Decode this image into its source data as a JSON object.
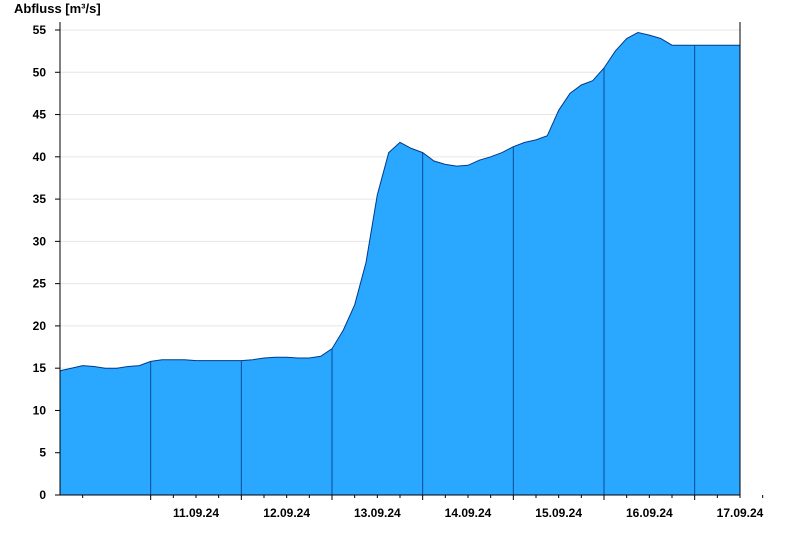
{
  "chart_data": {
    "type": "area",
    "title": "",
    "ylabel": "Abfluss [m³/s]",
    "xlabel": "",
    "ylim": [
      0,
      56
    ],
    "yticks": [
      0,
      5,
      10,
      15,
      20,
      25,
      30,
      35,
      40,
      45,
      50,
      55
    ],
    "xlim": [
      "10.09.24 00:00",
      "17.09.24 12:00"
    ],
    "xtick_labels": [
      "11.09.24",
      "12.09.24",
      "13.09.24",
      "14.09.24",
      "15.09.24",
      "16.09.24",
      "17.09.24"
    ],
    "grid": true,
    "fill_color": "#2aa8ff",
    "line_color": "#003a8c",
    "series": [
      {
        "x": [
          "10.09.24 00:00",
          "10.09.24 03:00",
          "10.09.24 06:00",
          "10.09.24 09:00",
          "10.09.24 12:00",
          "10.09.24 15:00",
          "10.09.24 18:00",
          "10.09.24 21:00",
          "11.09.24 00:00",
          "11.09.24 03:00",
          "11.09.24 06:00",
          "11.09.24 09:00",
          "11.09.24 12:00",
          "11.09.24 15:00",
          "11.09.24 18:00",
          "11.09.24 21:00",
          "12.09.24 00:00",
          "12.09.24 03:00",
          "12.09.24 06:00",
          "12.09.24 09:00",
          "12.09.24 12:00",
          "12.09.24 15:00",
          "12.09.24 18:00",
          "12.09.24 21:00",
          "13.09.24 00:00",
          "13.09.24 03:00",
          "13.09.24 06:00",
          "13.09.24 09:00",
          "13.09.24 12:00",
          "13.09.24 15:00",
          "13.09.24 18:00",
          "13.09.24 21:00",
          "14.09.24 00:00",
          "14.09.24 03:00",
          "14.09.24 06:00",
          "14.09.24 09:00",
          "14.09.24 12:00",
          "14.09.24 15:00",
          "14.09.24 18:00",
          "14.09.24 21:00",
          "15.09.24 00:00",
          "15.09.24 03:00",
          "15.09.24 06:00",
          "15.09.24 09:00",
          "15.09.24 12:00",
          "15.09.24 15:00",
          "15.09.24 18:00",
          "15.09.24 21:00",
          "16.09.24 00:00",
          "16.09.24 03:00",
          "16.09.24 06:00",
          "16.09.24 09:00",
          "16.09.24 12:00",
          "16.09.24 15:00",
          "16.09.24 18:00",
          "16.09.24 21:00",
          "17.09.24 00:00",
          "17.09.24 03:00",
          "17.09.24 06:00",
          "17.09.24 09:00",
          "17.09.24 12:00"
        ],
        "values": [
          14.7,
          15.0,
          15.3,
          15.2,
          15.0,
          15.0,
          15.2,
          15.3,
          15.8,
          16.0,
          16.0,
          16.0,
          15.9,
          15.9,
          15.9,
          15.9,
          15.9,
          16.0,
          16.2,
          16.3,
          16.3,
          16.2,
          16.2,
          16.4,
          17.3,
          19.5,
          22.5,
          27.5,
          35.5,
          40.5,
          41.7,
          41.0,
          40.5,
          39.5,
          39.1,
          38.9,
          39.0,
          39.6,
          40.0,
          40.5,
          41.2,
          41.7,
          42.0,
          42.5,
          45.5,
          47.5,
          48.5,
          49.0,
          50.5,
          52.5,
          54.0,
          54.7,
          54.4,
          54.0,
          53.2,
          53.2,
          53.2,
          53.2,
          53.2,
          53.2,
          53.2
        ]
      }
    ]
  }
}
